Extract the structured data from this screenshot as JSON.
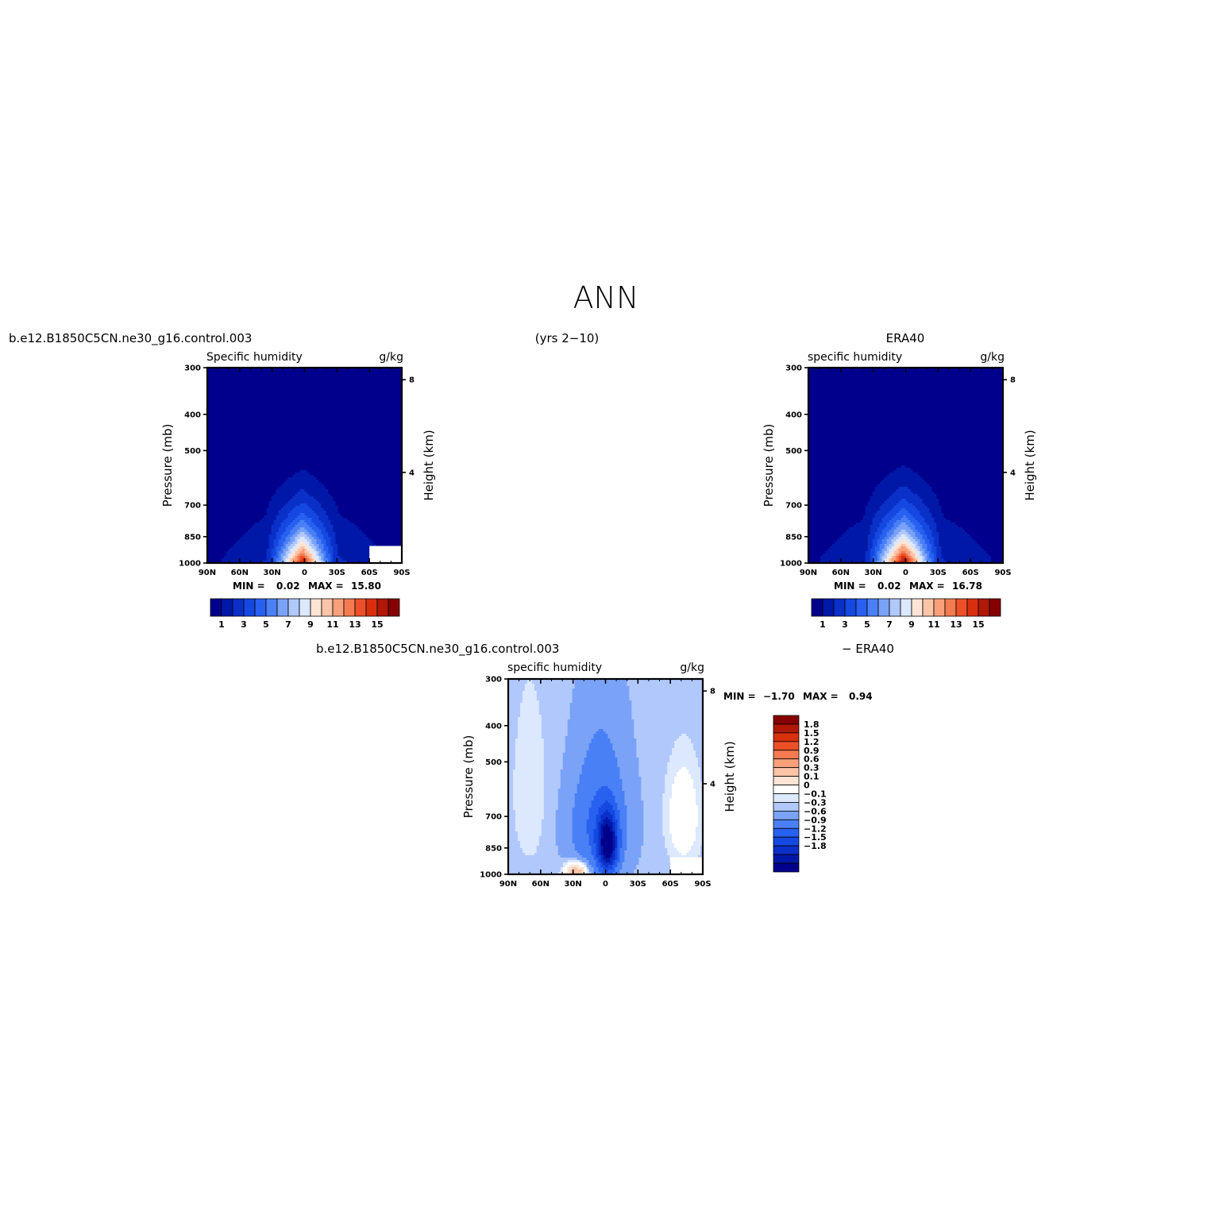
{
  "figure": {
    "title": "ANN",
    "case_name": "b.e12.B1850C5CN.ne30_g16.control.003",
    "years": "(yrs 2−10)",
    "obs_name": "ERA40",
    "diff_case_name": "b.e12.B1850C5CN.ne30_g16.control.003",
    "diff_obs_label": "− ERA40"
  },
  "colors": {
    "abs_palette": [
      "#00008c",
      "#0018a8",
      "#0a30c8",
      "#1448e0",
      "#2860f0",
      "#4a80f5",
      "#7aa2f7",
      "#b0c8fb",
      "#dbe8fe",
      "#fde4d4",
      "#fcc4a8",
      "#f9a07a",
      "#f47a50",
      "#ec5028",
      "#d8300c",
      "#b01808",
      "#860000"
    ],
    "diff_palette": [
      "#00008c",
      "#0018a8",
      "#0a30c8",
      "#1448e0",
      "#2860f0",
      "#4a80f5",
      "#7aa2f7",
      "#b0c8fb",
      "#dbe8fe",
      "#ffffff",
      "#fde4d4",
      "#fcc4a8",
      "#f9a07a",
      "#f47a50",
      "#ec5028",
      "#d8300c",
      "#b01808",
      "#860000"
    ]
  },
  "chart_data": [
    {
      "type": "heatmap",
      "title": "b.e12.B1850C5CN.ne30_g16.control.003",
      "field": "Specific humidity",
      "units": "g/kg",
      "xlabel": "",
      "ylabel": "Pressure (mb)",
      "ylabel_right": "Height (km)",
      "x_ticks": [
        "90N",
        "60N",
        "30N",
        "0",
        "30S",
        "60S",
        "90S"
      ],
      "x_range": [
        90,
        -90
      ],
      "y_ticks": [
        300,
        400,
        500,
        700,
        850,
        1000
      ],
      "y_range": [
        1000,
        300
      ],
      "y_scale": "log",
      "right_ticks": [
        4,
        8
      ],
      "stats": {
        "min_label": "MIN =",
        "min": "0.02",
        "max_label": "MAX =",
        "max": "15.80"
      },
      "contour_levels": [
        1,
        2,
        3,
        4,
        5,
        6,
        7,
        8,
        9,
        10,
        11,
        12,
        13,
        14,
        15,
        16
      ],
      "colorbar_labels": [
        "1",
        "3",
        "5",
        "7",
        "9",
        "11",
        "13",
        "15"
      ],
      "peak": {
        "lat": 2,
        "pressure": 1000,
        "value": 15.8
      },
      "missing_region": "south polar lower levels"
    },
    {
      "type": "heatmap",
      "title": "ERA40",
      "field": "specific humidity",
      "units": "g/kg",
      "xlabel": "",
      "ylabel": "Pressure (mb)",
      "ylabel_right": "Height (km)",
      "x_ticks": [
        "90N",
        "60N",
        "30N",
        "0",
        "30S",
        "60S",
        "90S"
      ],
      "x_range": [
        90,
        -90
      ],
      "y_ticks": [
        300,
        400,
        500,
        700,
        850,
        1000
      ],
      "y_range": [
        1000,
        300
      ],
      "y_scale": "log",
      "right_ticks": [
        4,
        8
      ],
      "stats": {
        "min_label": "MIN =",
        "min": "0.02",
        "max_label": "MAX =",
        "max": "16.78"
      },
      "contour_levels": [
        1,
        2,
        3,
        4,
        5,
        6,
        7,
        8,
        9,
        10,
        11,
        12,
        13,
        14,
        15,
        16
      ],
      "colorbar_labels": [
        "1",
        "3",
        "5",
        "7",
        "9",
        "11",
        "13",
        "15"
      ],
      "peak": {
        "lat": 2,
        "pressure": 1000,
        "value": 16.78
      }
    },
    {
      "type": "heatmap",
      "title": "b.e12.B1850C5CN.ne30_g16.control.003 − ERA40",
      "field": "specific humidity",
      "units": "g/kg",
      "xlabel": "",
      "ylabel": "Pressure (mb)",
      "ylabel_right": "Height (km)",
      "x_ticks": [
        "90N",
        "60N",
        "30N",
        "0",
        "30S",
        "60S",
        "90S"
      ],
      "x_range": [
        90,
        -90
      ],
      "y_ticks": [
        300,
        400,
        500,
        700,
        850,
        1000
      ],
      "y_range": [
        1000,
        300
      ],
      "y_scale": "log",
      "right_ticks": [
        4,
        8
      ],
      "stats": {
        "min_label": "MIN =",
        "min": "−1.70",
        "max_label": "MAX =",
        "max": "0.94"
      },
      "contour_levels": [
        -1.8,
        -1.5,
        -1.2,
        -0.9,
        -0.6,
        -0.3,
        -0.1,
        0,
        0.1,
        0.3,
        0.6,
        0.9,
        1.2,
        1.5,
        1.8
      ],
      "colorbar_labels": [
        "1.8",
        "1.5",
        "1.2",
        "0.9",
        "0.6",
        "0.3",
        "0.1",
        "0",
        "−0.1",
        "−0.3",
        "−0.6",
        "−0.9",
        "−1.2",
        "−1.5",
        "−1.8"
      ],
      "min_location": {
        "lat": -2,
        "pressure": 850,
        "value": -1.7
      },
      "max_location": {
        "lat": 30,
        "pressure": 1000,
        "value": 0.94
      },
      "missing_region": "south polar lower levels"
    }
  ]
}
